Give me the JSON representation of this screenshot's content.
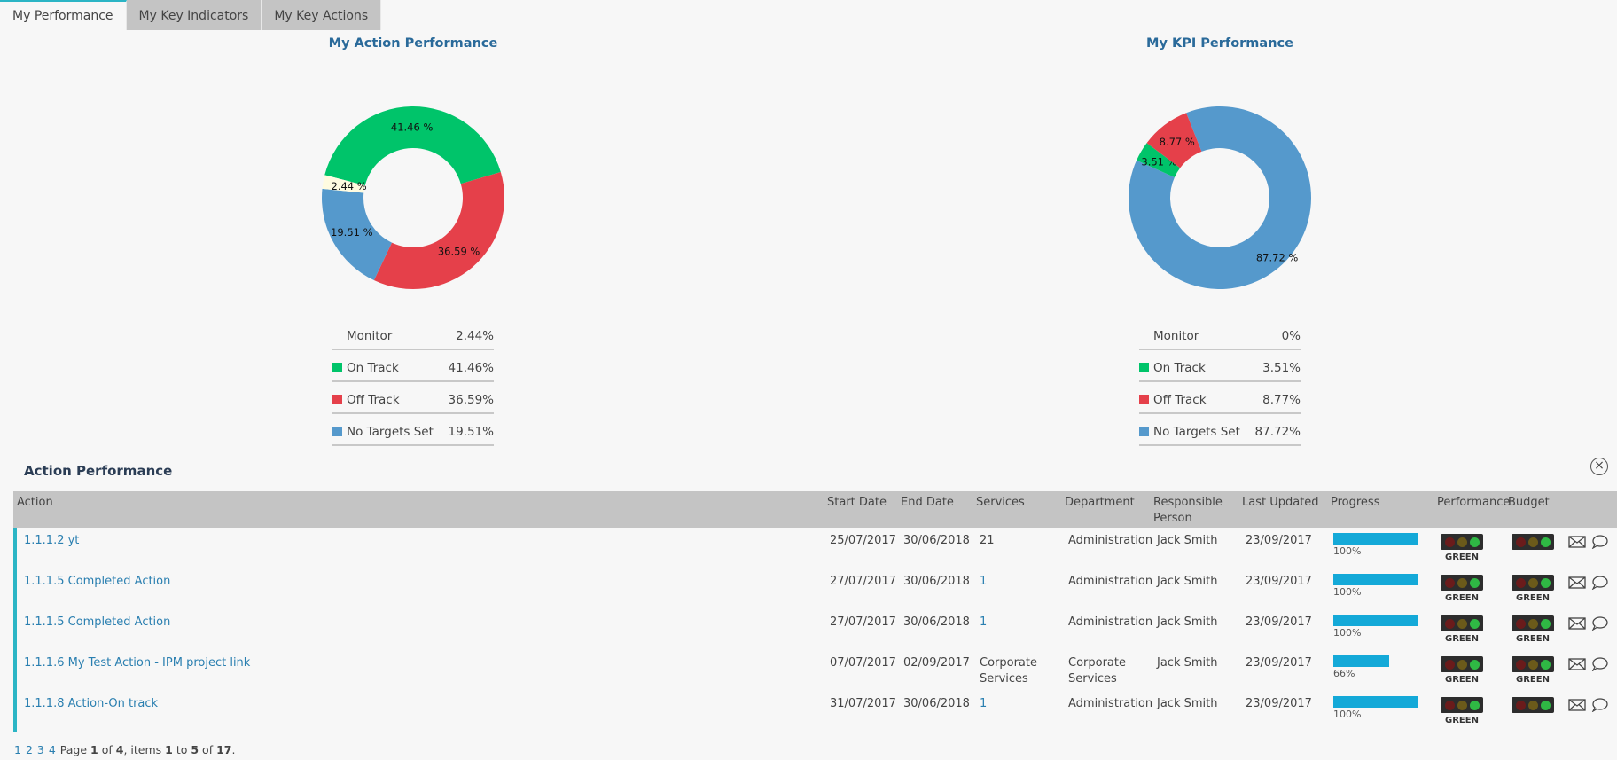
{
  "tabs": [
    {
      "label": "My Performance",
      "active": true
    },
    {
      "label": "My Key Indicators",
      "active": false
    },
    {
      "label": "My Key Actions",
      "active": false
    }
  ],
  "colors": {
    "on_track": "#00c46a",
    "off_track": "#e5404a",
    "no_targets": "#5599cc",
    "monitor": "#fffbe0",
    "accent": "#2bb5c5"
  },
  "action_chart": {
    "title": "My Action Performance",
    "slice_labels": [
      "41.46 %",
      "36.59 %",
      "19.51 %",
      "2.44 %"
    ],
    "legend": [
      {
        "label": "Monitor",
        "value": "2.44%"
      },
      {
        "label": "On Track",
        "value": "41.46%"
      },
      {
        "label": "Off Track",
        "value": "36.59%"
      },
      {
        "label": "No Targets Set",
        "value": "19.51%"
      }
    ]
  },
  "kpi_chart": {
    "title": "My KPI Performance",
    "slice_labels": [
      "87.72 %",
      "3.51 %",
      "8.77 %"
    ],
    "legend": [
      {
        "label": "Monitor",
        "value": "0%"
      },
      {
        "label": "On Track",
        "value": "3.51%"
      },
      {
        "label": "Off Track",
        "value": "8.77%"
      },
      {
        "label": "No Targets Set",
        "value": "87.72%"
      }
    ]
  },
  "chart_data": [
    {
      "type": "pie",
      "title": "My Action Performance",
      "categories": [
        "Monitor",
        "On Track",
        "Off Track",
        "No Targets Set"
      ],
      "values": [
        2.44,
        41.46,
        36.59,
        19.51
      ]
    },
    {
      "type": "pie",
      "title": "My KPI Performance",
      "categories": [
        "Monitor",
        "On Track",
        "Off Track",
        "No Targets Set"
      ],
      "values": [
        0,
        3.51,
        8.77,
        87.72
      ]
    }
  ],
  "section": {
    "title": "Action Performance",
    "close_icon": "×"
  },
  "table": {
    "headers": {
      "action": "Action",
      "start": "Start Date",
      "end": "End Date",
      "services": "Services",
      "department": "Department",
      "responsible_1": "Responsible",
      "responsible_2": "Person",
      "updated": "Last Updated",
      "progress": "Progress",
      "performance": "Performance",
      "budget": "Budget"
    },
    "rows": [
      {
        "action": "1.1.1.2 yt",
        "start": "25/07/2017",
        "end": "30/06/2018",
        "services": "21",
        "services_link": false,
        "services_2": "",
        "department": "Administration",
        "department_2": "",
        "responsible": "Jack Smith",
        "updated": "23/09/2017",
        "progress": 100,
        "progress_text": "100%",
        "performance": "GREEN",
        "budget": ""
      },
      {
        "action": "1.1.1.5 Completed Action",
        "start": "27/07/2017",
        "end": "30/06/2018",
        "services": "1",
        "services_link": true,
        "services_2": "",
        "department": "Administration",
        "department_2": "",
        "responsible": "Jack Smith",
        "updated": "23/09/2017",
        "progress": 100,
        "progress_text": "100%",
        "performance": "GREEN",
        "budget": "GREEN"
      },
      {
        "action": "1.1.1.5 Completed Action",
        "start": "27/07/2017",
        "end": "30/06/2018",
        "services": "1",
        "services_link": true,
        "services_2": "",
        "department": "Administration",
        "department_2": "",
        "responsible": "Jack Smith",
        "updated": "23/09/2017",
        "progress": 100,
        "progress_text": "100%",
        "performance": "GREEN",
        "budget": "GREEN"
      },
      {
        "action": "1.1.1.6 My Test Action - IPM project link",
        "start": "07/07/2017",
        "end": "02/09/2017",
        "services": "Corporate",
        "services_link": false,
        "services_2": "Services",
        "department": "Corporate",
        "department_2": "Services",
        "responsible": "Jack Smith",
        "updated": "23/09/2017",
        "progress": 66,
        "progress_text": "66%",
        "performance": "GREEN",
        "budget": "GREEN"
      },
      {
        "action": "1.1.1.8 Action-On track",
        "start": "31/07/2017",
        "end": "30/06/2018",
        "services": "1",
        "services_link": true,
        "services_2": "",
        "department": "Administration",
        "department_2": "",
        "responsible": "Jack Smith",
        "updated": "23/09/2017",
        "progress": 100,
        "progress_text": "100%",
        "performance": "GREEN",
        "budget": ""
      }
    ]
  },
  "pager": {
    "pages": [
      "1",
      "2",
      "3",
      "4"
    ],
    "word_page": "Page",
    "current": "1",
    "of_word": "of",
    "total_pages": "4",
    "items_word": ", items",
    "from": "1",
    "to_word": "to",
    "to": "5",
    "of_word_2": "of",
    "total": "17",
    "end": "."
  }
}
